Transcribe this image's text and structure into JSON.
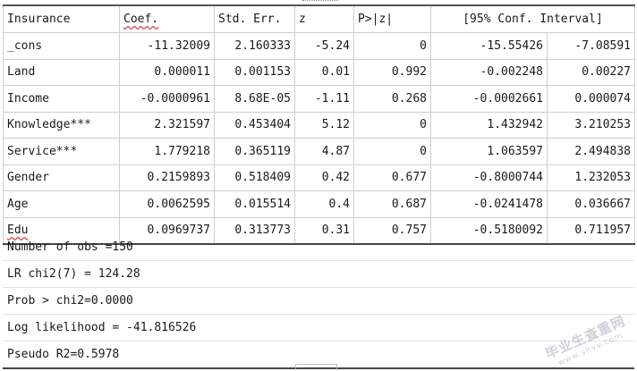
{
  "table": {
    "headers": [
      "Insurance",
      "Coef.",
      "Std. Err.",
      "z",
      "P>|z|",
      "[95% Conf. Interval]"
    ],
    "rows": [
      {
        "var": "_cons",
        "coef": "-11.32009",
        "se": "2.160333",
        "z": "-5.24",
        "p": "0",
        "lo": "-15.55426",
        "hi": "-7.08591"
      },
      {
        "var": "Land",
        "coef": "0.000011",
        "se": "0.001153",
        "z": "0.01",
        "p": "0.992",
        "lo": "-0.002248",
        "hi": "0.00227"
      },
      {
        "var": "Income",
        "coef": "-0.0000961",
        "se": "8.68E-05",
        "z": "-1.11",
        "p": "0.268",
        "lo": "-0.0002661",
        "hi": "0.000074"
      },
      {
        "var": "Knowledge***",
        "coef": "2.321597",
        "se": "0.453404",
        "z": "5.12",
        "p": "0",
        "lo": "1.432942",
        "hi": "3.210253"
      },
      {
        "var": "Service***",
        "coef": "1.779218",
        "se": "0.365119",
        "z": "4.87",
        "p": "0",
        "lo": "1.063597",
        "hi": "2.494838"
      },
      {
        "var": "Gender",
        "coef": "0.2159893",
        "se": "0.518409",
        "z": "0.42",
        "p": "0.677",
        "lo": "-0.8000744",
        "hi": "1.232053"
      },
      {
        "var": "Age",
        "coef": "0.0062595",
        "se": "0.015514",
        "z": "0.4",
        "p": "0.687",
        "lo": "-0.0241478",
        "hi": "0.036667"
      },
      {
        "var": "Edu",
        "coef": "0.0969737",
        "se": "0.313773",
        "z": "0.31",
        "p": "0.757",
        "lo": "-0.5180092",
        "hi": "0.711957"
      }
    ]
  },
  "stats": [
    "Number of obs =150",
    "LR chi2(7) = 124.28",
    "Prob > chi2=0.0000",
    "Log likelihood = -41.816526",
    "Pseudo R2=0.5978"
  ],
  "watermark": {
    "main": "毕业生查重网",
    "sub": "www.shvv.com"
  }
}
